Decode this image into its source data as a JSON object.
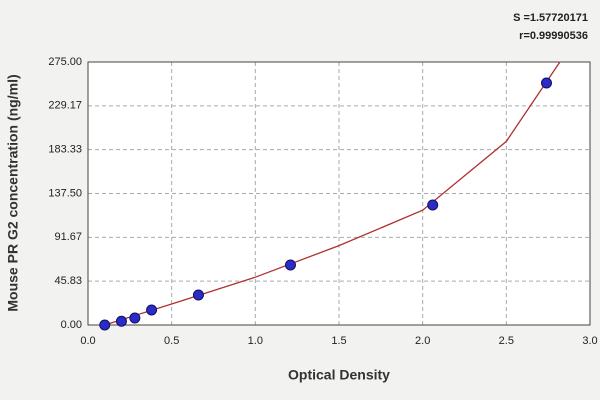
{
  "chart_data": {
    "type": "scatter",
    "x_label": "Optical Density",
    "y_label": "Mouse PR G2 concentration (ng/ml)",
    "annotations": [
      "S =1.57720171",
      "r=0.99990536"
    ],
    "series": [
      {
        "color": "#2b2bc8",
        "x": [
          0.1,
          0.2,
          0.28,
          0.38,
          0.66,
          1.21,
          2.06,
          2.74
        ],
        "values": [
          0,
          3.9,
          7.3,
          15.7,
          31.4,
          62.7,
          125.5,
          253
        ]
      }
    ],
    "curve": {
      "color": "#b03030",
      "x": [
        0.1,
        0.5,
        1.0,
        1.5,
        2.0,
        2.5,
        2.82
      ],
      "values": [
        0,
        22,
        50,
        83,
        120,
        192,
        275
      ]
    },
    "xlim": [
      0,
      3
    ],
    "ylim": [
      0,
      275
    ],
    "xticks": [
      {
        "value": 0,
        "label": "0.0"
      },
      0.5,
      {
        "value": 1,
        "label": "1.0"
      },
      1.5,
      {
        "value": 2,
        "label": "2.0"
      },
      2.5,
      {
        "value": 3,
        "label": "3.0"
      }
    ],
    "yticks": [
      {
        "value": 0,
        "label": "0.00"
      },
      45.83,
      91.67,
      {
        "value": 137.5,
        "label": "137.50"
      },
      183.33,
      229.17,
      {
        "value": 275,
        "label": "275.00"
      }
    ],
    "grid": true
  }
}
